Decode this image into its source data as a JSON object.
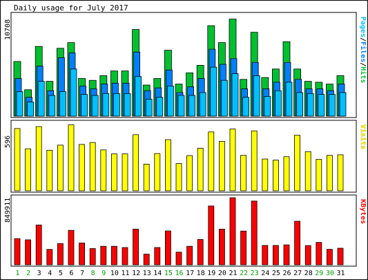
{
  "chart_data": {
    "type": "bar",
    "title": "Daily usage for July 2017",
    "categories": [
      "1",
      "2",
      "3",
      "4",
      "5",
      "6",
      "7",
      "8",
      "9",
      "10",
      "11",
      "12",
      "13",
      "14",
      "15",
      "16",
      "17",
      "18",
      "19",
      "20",
      "21",
      "22",
      "23",
      "24",
      "25",
      "26",
      "27",
      "28",
      "29",
      "30",
      "31"
    ],
    "weekend_days": [
      "1",
      "2",
      "8",
      "9",
      "15",
      "16",
      "22",
      "23",
      "29",
      "30"
    ],
    "colors": {
      "hits": "#00C030",
      "files": "#0080FF",
      "pages": "#00C0FF",
      "visits": "#FFFF00",
      "kbytes": "#FF0000",
      "weekday_label": "#000000",
      "weekend_label": "#00A000",
      "panel_background": "#FFFFFF",
      "outer_background": "#FFFFFF"
    },
    "panels": [
      {
        "id": "hits",
        "max_label": "10708",
        "ymax": 10708,
        "right_label_parts": [
          {
            "text": "Pages",
            "color": "#00C0FF"
          },
          {
            "text": "/",
            "color": "#000000"
          },
          {
            "text": "Files",
            "color": "#0080FF"
          },
          {
            "text": "/",
            "color": "#000000"
          },
          {
            "text": "Hits",
            "color": "#00C030"
          }
        ],
        "series": [
          {
            "name": "Hits",
            "color": "#00C030",
            "values": [
              5800,
              2800,
              7400,
              3700,
              7200,
              7800,
              4000,
              3800,
              4300,
              4800,
              4800,
              9200,
              3300,
              4000,
              7000,
              3400,
              4600,
              5400,
              9600,
              7800,
              10300,
              3900,
              8900,
              4100,
              5000,
              7900,
              5000,
              3700,
              3600,
              3400,
              4300
            ]
          },
          {
            "name": "Files",
            "color": "#0080FF",
            "values": [
              4000,
              2000,
              5300,
              2700,
              6200,
              6700,
              3200,
              2900,
              3400,
              3500,
              3500,
              6800,
              2700,
              3000,
              4900,
              2500,
              3100,
              4000,
              7100,
              5500,
              6100,
              2900,
              5700,
              2900,
              3600,
              5700,
              3900,
              2900,
              2900,
              2700,
              3400
            ]
          },
          {
            "name": "Pages",
            "color": "#00C0FF",
            "values": [
              2600,
              1500,
              3700,
              2200,
              2600,
              5000,
              2300,
              2200,
              2400,
              2400,
              2400,
              4200,
              1800,
              2000,
              3200,
              2200,
              2200,
              2500,
              5200,
              3800,
              4500,
              2000,
              4300,
              2100,
              2700,
              3600,
              2500,
              2400,
              2300,
              2300,
              2500
            ]
          }
        ]
      },
      {
        "id": "visits",
        "max_label": "596",
        "ymax": 596,
        "right_label_parts": [
          {
            "text": "Visits",
            "color": "#FFFF00"
          }
        ],
        "series": [
          {
            "name": "Visits",
            "color": "#FFFF00",
            "values": [
              548,
              370,
              565,
              357,
              402,
              580,
              408,
              425,
              360,
              325,
              325,
              494,
              235,
              328,
              450,
              240,
              310,
              375,
              518,
              435,
              544,
              312,
              527,
              280,
              270,
              300,
              489,
              345,
              277,
              312,
              317
            ]
          }
        ]
      },
      {
        "id": "kbytes",
        "max_label": "849911",
        "ymax": 849911,
        "right_label_parts": [
          {
            "text": "KBytes",
            "color": "#FF0000"
          }
        ],
        "series": [
          {
            "name": "KBytes",
            "color": "#FF0000",
            "values": [
              332000,
              316000,
              505000,
              195000,
              270000,
              436000,
              276000,
              206000,
              235000,
              235000,
              219000,
              452000,
              135000,
              219000,
              429000,
              160000,
              235000,
              322000,
              746000,
              452000,
              849911,
              428000,
              808000,
              245000,
              245000,
              252000,
              552000,
              244000,
              284000,
              196000,
              210000
            ]
          }
        ]
      }
    ]
  }
}
